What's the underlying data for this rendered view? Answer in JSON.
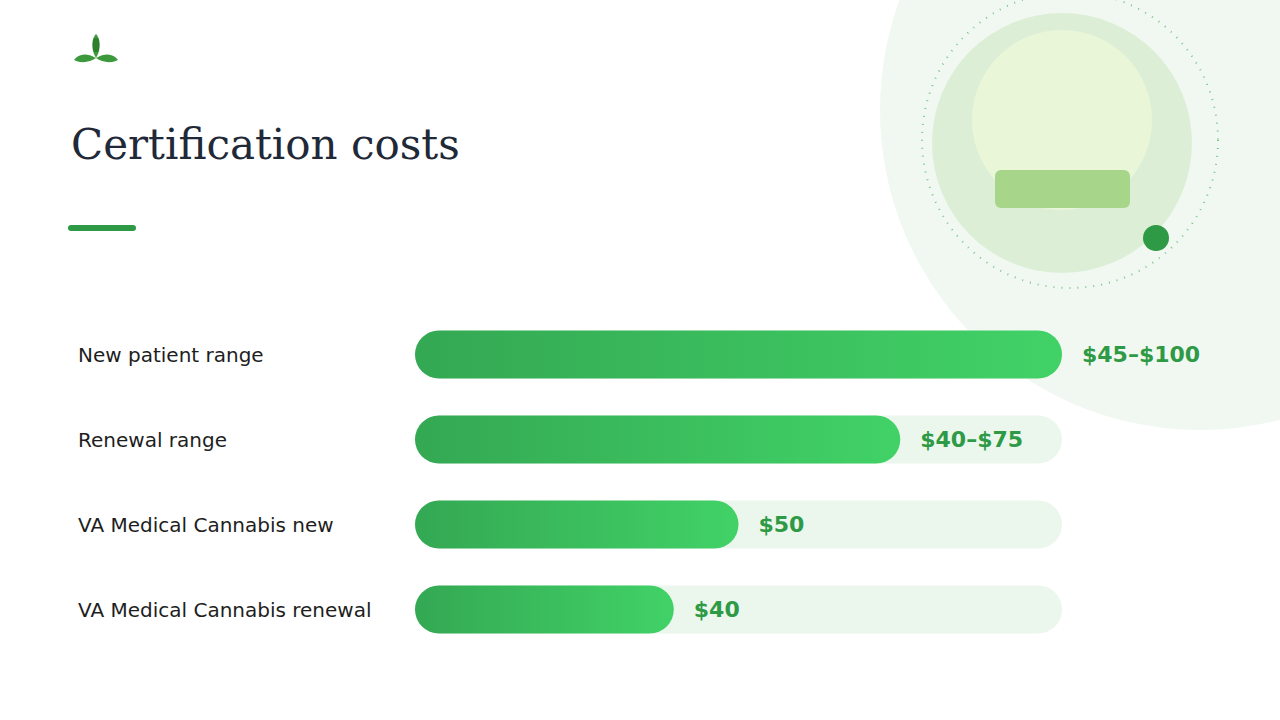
{
  "chart_data": {
    "type": "bar",
    "title": "Certification costs",
    "orientation": "horizontal",
    "categories": [
      "New patient range",
      "Renewal range",
      "VA Medical Cannabis new",
      "VA Medical Cannabis renewal"
    ],
    "values": [
      100,
      75,
      50,
      40
    ],
    "value_labels": [
      "$45–$100",
      "$40–$75",
      "$50",
      "$40"
    ],
    "color": "#34a853",
    "xlim": [
      0,
      100
    ],
    "data_labels": true,
    "tick_labels": false,
    "grid": false
  }
}
